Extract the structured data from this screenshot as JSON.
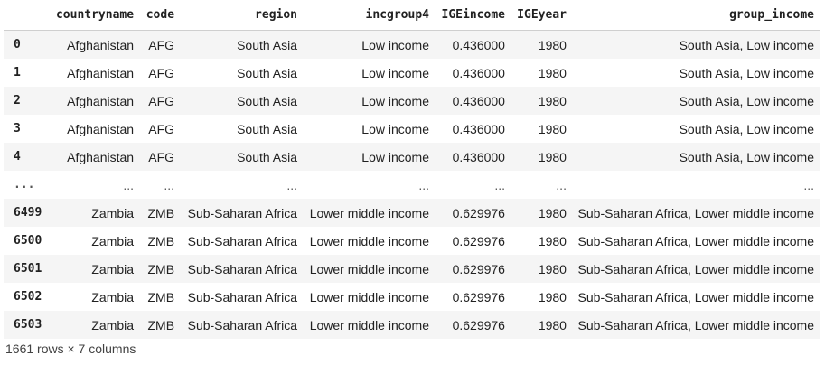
{
  "table": {
    "columns": [
      "countryname",
      "code",
      "region",
      "incgroup4",
      "IGEincome",
      "IGEyear",
      "group_income"
    ],
    "rows": [
      {
        "index": "0",
        "cells": [
          "Afghanistan",
          "AFG",
          "South Asia",
          "Low income",
          "0.436000",
          "1980",
          "South Asia, Low income"
        ]
      },
      {
        "index": "1",
        "cells": [
          "Afghanistan",
          "AFG",
          "South Asia",
          "Low income",
          "0.436000",
          "1980",
          "South Asia, Low income"
        ]
      },
      {
        "index": "2",
        "cells": [
          "Afghanistan",
          "AFG",
          "South Asia",
          "Low income",
          "0.436000",
          "1980",
          "South Asia, Low income"
        ]
      },
      {
        "index": "3",
        "cells": [
          "Afghanistan",
          "AFG",
          "South Asia",
          "Low income",
          "0.436000",
          "1980",
          "South Asia, Low income"
        ]
      },
      {
        "index": "4",
        "cells": [
          "Afghanistan",
          "AFG",
          "South Asia",
          "Low income",
          "0.436000",
          "1980",
          "South Asia, Low income"
        ]
      },
      {
        "index": "...",
        "cells": [
          "...",
          "...",
          "...",
          "...",
          "...",
          "...",
          "..."
        ]
      },
      {
        "index": "6499",
        "cells": [
          "Zambia",
          "ZMB",
          "Sub-Saharan Africa",
          "Lower middle income",
          "0.629976",
          "1980",
          "Sub-Saharan Africa, Lower middle income"
        ]
      },
      {
        "index": "6500",
        "cells": [
          "Zambia",
          "ZMB",
          "Sub-Saharan Africa",
          "Lower middle income",
          "0.629976",
          "1980",
          "Sub-Saharan Africa, Lower middle income"
        ]
      },
      {
        "index": "6501",
        "cells": [
          "Zambia",
          "ZMB",
          "Sub-Saharan Africa",
          "Lower middle income",
          "0.629976",
          "1980",
          "Sub-Saharan Africa, Lower middle income"
        ]
      },
      {
        "index": "6502",
        "cells": [
          "Zambia",
          "ZMB",
          "Sub-Saharan Africa",
          "Lower middle income",
          "0.629976",
          "1980",
          "Sub-Saharan Africa, Lower middle income"
        ]
      },
      {
        "index": "6503",
        "cells": [
          "Zambia",
          "ZMB",
          "Sub-Saharan Africa",
          "Lower middle income",
          "0.629976",
          "1980",
          "Sub-Saharan Africa, Lower middle income"
        ]
      }
    ],
    "shape_text": "1661 rows × 7 columns"
  }
}
